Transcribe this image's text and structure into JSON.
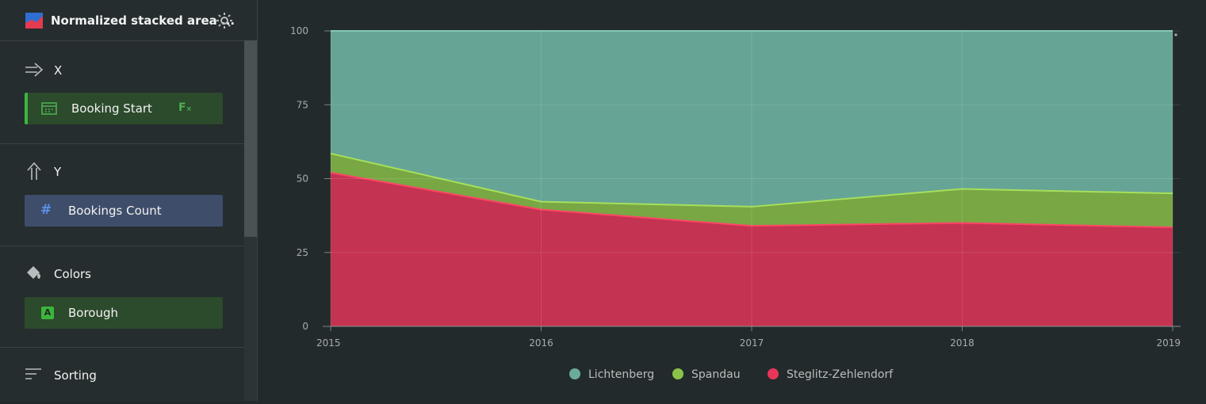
{
  "sidebar": {
    "header": {
      "title": "Normalized stacked area ...",
      "icon": "stacked-area-chart-icon"
    },
    "x": {
      "label": "X",
      "field": "Booking Start",
      "field_badge": "F",
      "icon": "arrow-right-icon"
    },
    "y": {
      "label": "Y",
      "field": "Bookings Count",
      "icon": "arrow-up-icon"
    },
    "colors": {
      "label": "Colors",
      "field": "Borough",
      "field_type_badge": "A",
      "icon": "paint-bucket-icon"
    },
    "sorting": {
      "label": "Sorting",
      "icon": "sorting-icon"
    }
  },
  "chart_data": {
    "type": "area",
    "stacked": true,
    "normalized": true,
    "x": [
      "2015",
      "2016",
      "2017",
      "2018",
      "2019"
    ],
    "y_ticks": [
      "0",
      "25",
      "50",
      "75",
      "100"
    ],
    "ylim": [
      0,
      100
    ],
    "grid": true,
    "legend_position": "bottom",
    "series": [
      {
        "name": "Steglitz-Zehlendorf",
        "values": [
          52,
          39.5,
          34,
          35,
          33.5
        ],
        "color": "#e8365a"
      },
      {
        "name": "Spandau",
        "values": [
          6.5,
          2.7,
          6.5,
          11.5,
          11.5
        ],
        "color": "#8bc34a"
      },
      {
        "name": "Lichtenberg",
        "values": [
          41.5,
          57.8,
          59.5,
          53.5,
          55
        ],
        "color": "#6aab9c"
      }
    ]
  }
}
